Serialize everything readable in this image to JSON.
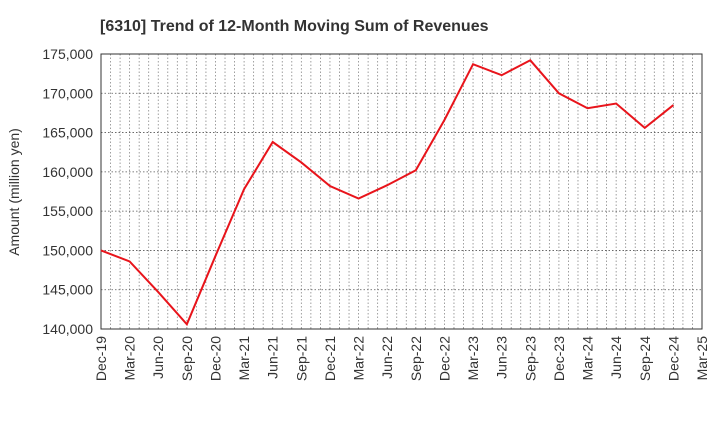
{
  "chart_data": {
    "type": "line",
    "title": "[6310]  Trend of 12-Month Moving Sum of Revenues",
    "xlabel": "",
    "ylabel": "Amount (million yen)",
    "ylim": [
      140000,
      175000
    ],
    "yticks": [
      "140,000",
      "145,000",
      "150,000",
      "155,000",
      "160,000",
      "165,000",
      "170,000",
      "175,000"
    ],
    "categories": [
      "Dec-19",
      "Mar-20",
      "Jun-20",
      "Sep-20",
      "Dec-20",
      "Mar-21",
      "Jun-21",
      "Sep-21",
      "Dec-21",
      "Mar-22",
      "Jun-22",
      "Sep-22",
      "Dec-22",
      "Mar-23",
      "Jun-23",
      "Sep-23",
      "Dec-23",
      "Mar-24",
      "Jun-24",
      "Sep-24",
      "Dec-24",
      "Mar-25"
    ],
    "series": [
      {
        "values": [
          150000,
          148600,
          144700,
          140600,
          149300,
          157800,
          163800,
          161200,
          158200,
          156600,
          158300,
          160200,
          166600,
          173700,
          172300,
          174200,
          170000,
          168100,
          168700,
          165600,
          168500,
          null
        ],
        "color": "#e8141b"
      }
    ],
    "grid": true,
    "legend": "none"
  }
}
